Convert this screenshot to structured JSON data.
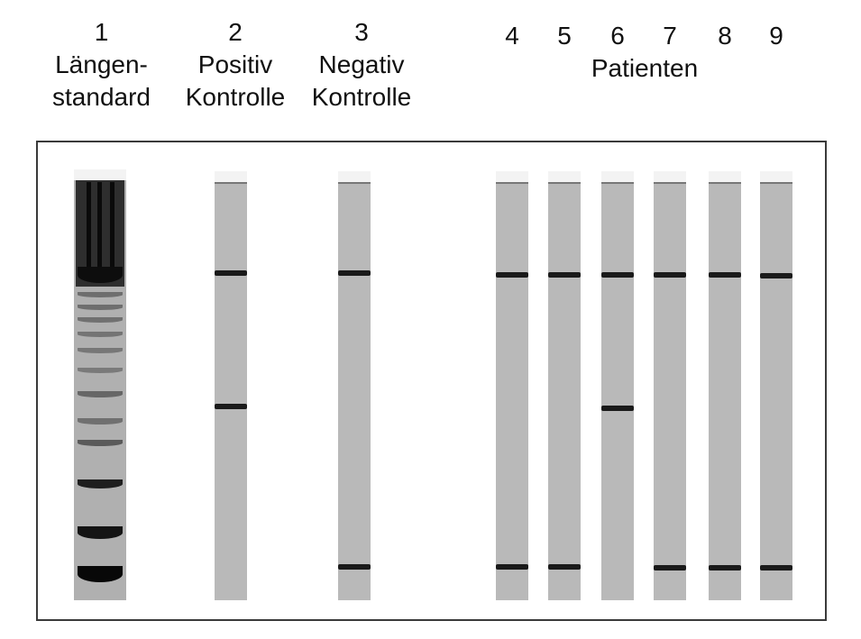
{
  "header": {
    "lane1": {
      "number": "1",
      "line1": "Längen-",
      "line2": "standard"
    },
    "lane2": {
      "number": "2",
      "line1": "Positiv",
      "line2": "Kontrolle"
    },
    "lane3": {
      "number": "3",
      "line1": "Negativ",
      "line2": "Kontrolle"
    },
    "patients": {
      "numbers": [
        "4",
        "5",
        "6",
        "7",
        "8",
        "9"
      ],
      "label": "Patienten"
    }
  },
  "lanes": [
    {
      "id": "2",
      "bands": [
        "upper",
        "middle"
      ]
    },
    {
      "id": "3",
      "bands": [
        "upper",
        "lower"
      ]
    },
    {
      "id": "4",
      "bands": [
        "upper",
        "lower"
      ]
    },
    {
      "id": "5",
      "bands": [
        "upper",
        "lower"
      ]
    },
    {
      "id": "6",
      "bands": [
        "upper",
        "middle"
      ]
    },
    {
      "id": "7",
      "bands": [
        "upper",
        "lower"
      ]
    },
    {
      "id": "8",
      "bands": [
        "upper",
        "lower"
      ]
    },
    {
      "id": "9",
      "bands": [
        "upper",
        "lower"
      ]
    }
  ]
}
